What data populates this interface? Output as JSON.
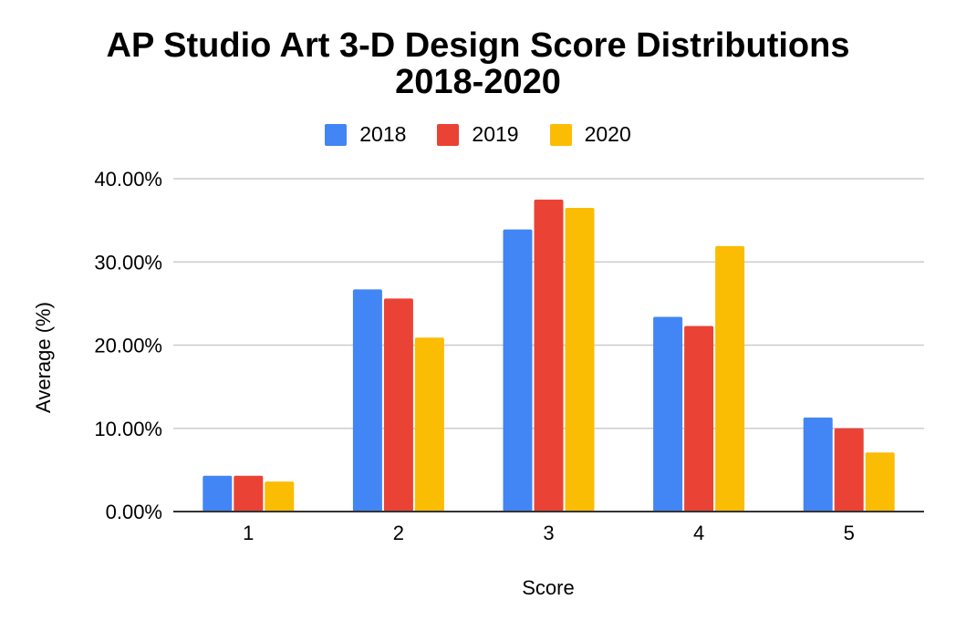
{
  "chart_data": {
    "type": "bar",
    "title": "AP Studio Art 3-D Design Score Distributions 2018-2020",
    "title_lines": [
      "AP Studio Art 3-D Design Score Distributions",
      "2018-2020"
    ],
    "xlabel": "Score",
    "ylabel": "Average (%)",
    "categories": [
      "1",
      "2",
      "3",
      "4",
      "5"
    ],
    "ylim": [
      0,
      40
    ],
    "yticks": [
      0,
      10,
      20,
      30,
      40
    ],
    "ytick_labels": [
      "0.00%",
      "10.00%",
      "20.00%",
      "30.00%",
      "40.00%"
    ],
    "grid": true,
    "legend_position": "top",
    "series": [
      {
        "name": "2018",
        "color": "#4285f4",
        "values": [
          4.3,
          26.7,
          33.9,
          23.4,
          11.3
        ]
      },
      {
        "name": "2019",
        "color": "#ea4335",
        "values": [
          4.3,
          25.6,
          37.5,
          22.3,
          10.0
        ]
      },
      {
        "name": "2020",
        "color": "#fbbc04",
        "values": [
          3.6,
          20.9,
          36.5,
          31.9,
          7.1
        ]
      }
    ]
  }
}
